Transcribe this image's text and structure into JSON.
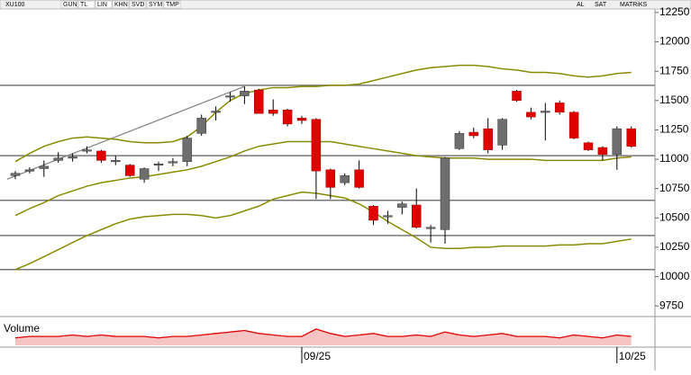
{
  "toolbar": {
    "symbol": "XU100",
    "buttons": [
      "GUN",
      "TL",
      "LIN",
      "KHN",
      "SVD",
      "SYM",
      "TMP"
    ],
    "right_buttons": [
      "AL",
      "SAT",
      "MATRiKS"
    ]
  },
  "chart_data": {
    "type": "candlestick",
    "categories": [
      null,
      null,
      null,
      null,
      null,
      null,
      null,
      null,
      null,
      null,
      null,
      null,
      null,
      null,
      null,
      null,
      null,
      null,
      null,
      null,
      "09/25",
      null,
      null,
      null,
      null,
      null,
      null,
      null,
      null,
      null,
      null,
      null,
      null,
      null,
      null,
      null,
      null,
      null,
      null,
      null,
      null,
      null,
      "10/25",
      null
    ],
    "open": [
      10860,
      10900,
      10920,
      10990,
      11010,
      11080,
      11070,
      10990,
      10950,
      10830,
      10950,
      10970,
      10980,
      11220,
      11400,
      11530,
      11540,
      11590,
      11420,
      11420,
      11350,
      11340,
      10910,
      10800,
      10910,
      10600,
      10520,
      10590,
      10610,
      10420,
      10400,
      11090,
      11230,
      11260,
      11120,
      11580,
      11400,
      11400,
      11480,
      11400,
      11140,
      11100,
      11040,
      11260
    ],
    "high": [
      10900,
      10930,
      10990,
      11060,
      11050,
      11110,
      11080,
      11030,
      10960,
      10930,
      10980,
      11010,
      11200,
      11380,
      11450,
      11570,
      11620,
      11600,
      11510,
      11430,
      11370,
      11350,
      10920,
      10880,
      10990,
      10610,
      10560,
      10640,
      10750,
      10440,
      11020,
      11240,
      11270,
      11350,
      11350,
      11590,
      11440,
      11480,
      11500,
      11410,
      11150,
      11110,
      11280,
      11280
    ],
    "low": [
      10830,
      10880,
      10850,
      10970,
      10980,
      11050,
      10970,
      10950,
      10850,
      10800,
      10900,
      10940,
      10940,
      11200,
      11330,
      11490,
      11470,
      11390,
      11370,
      11280,
      11300,
      10660,
      10660,
      10780,
      10750,
      10440,
      10450,
      10530,
      10410,
      10290,
      10280,
      11080,
      11180,
      11050,
      11080,
      11490,
      11340,
      11160,
      11380,
      11170,
      11070,
      10990,
      10910,
      11100
    ],
    "close": [
      10880,
      10910,
      10940,
      11010,
      11020,
      11080,
      10990,
      10990,
      10860,
      10920,
      10960,
      10980,
      11180,
      11350,
      11410,
      11540,
      11580,
      11390,
      11390,
      11300,
      11330,
      10900,
      10760,
      10860,
      10760,
      10480,
      10520,
      10620,
      10420,
      10420,
      11010,
      11220,
      11200,
      11080,
      11340,
      11500,
      11360,
      11410,
      11400,
      11180,
      11080,
      11040,
      11260,
      11110
    ],
    "up_color": "#6e6e6e",
    "down_color": "#e00000",
    "bands": [
      {
        "name": "upper",
        "color": "#8a8a00",
        "values": [
          10980,
          11050,
          11110,
          11150,
          11180,
          11190,
          11180,
          11170,
          11150,
          11140,
          11140,
          11150,
          11190,
          11280,
          11400,
          11500,
          11560,
          11590,
          11610,
          11610,
          11620,
          11620,
          11630,
          11630,
          11640,
          11670,
          11700,
          11730,
          11760,
          11780,
          11790,
          11800,
          11800,
          11790,
          11770,
          11760,
          11740,
          11740,
          11730,
          11710,
          11700,
          11710,
          11730,
          11740
        ]
      },
      {
        "name": "middle",
        "color": "#8a8a00",
        "values": [
          10520,
          10580,
          10630,
          10690,
          10730,
          10770,
          10800,
          10820,
          10840,
          10850,
          10870,
          10890,
          10910,
          10940,
          10980,
          11020,
          11070,
          11110,
          11130,
          11150,
          11150,
          11150,
          11150,
          11130,
          11110,
          11090,
          11070,
          11050,
          11030,
          11020,
          11010,
          11010,
          11010,
          11000,
          11000,
          11000,
          11000,
          10990,
          10990,
          10990,
          10990,
          10990,
          11010,
          11020
        ]
      },
      {
        "name": "lower",
        "color": "#8a8a00",
        "values": [
          10060,
          10110,
          10170,
          10230,
          10290,
          10350,
          10400,
          10450,
          10490,
          10510,
          10520,
          10530,
          10530,
          10520,
          10500,
          10520,
          10560,
          10600,
          10660,
          10690,
          10720,
          10710,
          10690,
          10670,
          10620,
          10550,
          10470,
          10400,
          10330,
          10250,
          10240,
          10240,
          10250,
          10250,
          10260,
          10260,
          10260,
          10260,
          10270,
          10270,
          10280,
          10280,
          10300,
          10320
        ]
      }
    ],
    "hlines": [
      11630,
      11030,
      10650,
      10350,
      10060
    ],
    "hline_color": "#777777",
    "trendline": {
      "from": [
        0,
        10830
      ],
      "to": [
        16,
        11620
      ],
      "color": "#888888"
    },
    "ylim": [
      9675,
      12280
    ],
    "yticks": [
      9750,
      10000,
      10250,
      10500,
      10750,
      11000,
      11250,
      11500,
      11750,
      12000,
      12250
    ],
    "volume": {
      "label": "Volume",
      "color": "#e00000",
      "ylim": [
        0,
        17
      ],
      "values": [
        5,
        6,
        6,
        6,
        7,
        6,
        7,
        6,
        6,
        6,
        5,
        6,
        6,
        7,
        8,
        9,
        10,
        8,
        7,
        6,
        6,
        11,
        8,
        6,
        7,
        8,
        6,
        6,
        7,
        6,
        9,
        7,
        6,
        7,
        8,
        6,
        6,
        6,
        5,
        7,
        6,
        5,
        7,
        6
      ]
    }
  }
}
